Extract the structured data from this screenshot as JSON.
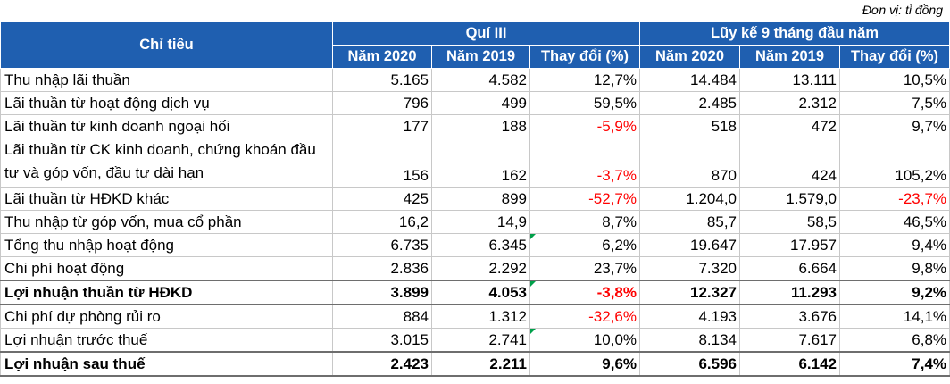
{
  "unit_note": "Đơn vị: tỉ đồng",
  "header": {
    "indicator": "Chỉ tiêu",
    "group_q3": "Quí III",
    "group_9m": "Lũy kế 9 tháng đầu năm",
    "col_2020": "Năm 2020",
    "col_2019": "Năm 2019",
    "col_change": "Thay đổi (%)"
  },
  "rows": [
    {
      "label": "Thu nhập lãi thuần",
      "q3_2020": "5.165",
      "q3_2019": "4.582",
      "q3_change": "12,7%",
      "m9_2020": "14.484",
      "m9_2019": "13.111",
      "m9_change": "10,5%"
    },
    {
      "label": "Lãi thuần từ hoạt động dịch vụ",
      "q3_2020": "796",
      "q3_2019": "499",
      "q3_change": "59,5%",
      "m9_2020": "2.485",
      "m9_2019": "2.312",
      "m9_change": "7,5%"
    },
    {
      "label": "Lãi thuần từ kinh doanh ngoại hối",
      "q3_2020": "177",
      "q3_2019": "188",
      "q3_change": "-5,9%",
      "m9_2020": "518",
      "m9_2019": "472",
      "m9_change": "9,7%"
    },
    {
      "label": "Lãi thuần từ CK kinh doanh, chứng khoán đầu tư và góp vốn, đầu tư dài hạn",
      "q3_2020": "156",
      "q3_2019": "162",
      "q3_change": "-3,7%",
      "m9_2020": "870",
      "m9_2019": "424",
      "m9_change": "105,2%"
    },
    {
      "label": "Lãi thuần từ HĐKD khác",
      "q3_2020": "425",
      "q3_2019": "899",
      "q3_change": "-52,7%",
      "m9_2020": "1.204,0",
      "m9_2019": "1.579,0",
      "m9_change": "-23,7%"
    },
    {
      "label": "Thu nhập từ góp vốn, mua cổ phần",
      "q3_2020": "16,2",
      "q3_2019": "14,9",
      "q3_change": "8,7%",
      "m9_2020": "85,7",
      "m9_2019": "58,5",
      "m9_change": "46,5%"
    },
    {
      "label": "Tổng thu nhập hoạt động",
      "q3_2020": "6.735",
      "q3_2019": "6.345",
      "q3_change": "6,2%",
      "m9_2020": "19.647",
      "m9_2019": "17.957",
      "m9_change": "9,4%"
    },
    {
      "label": "Chi phí hoạt động",
      "q3_2020": "2.836",
      "q3_2019": "2.292",
      "q3_change": "23,7%",
      "m9_2020": "7.320",
      "m9_2019": "6.664",
      "m9_change": "9,8%"
    },
    {
      "label": "Lợi nhuận thuần từ HĐKD",
      "q3_2020": "3.899",
      "q3_2019": "4.053",
      "q3_change": "-3,8%",
      "m9_2020": "12.327",
      "m9_2019": "11.293",
      "m9_change": "9,2%"
    },
    {
      "label": "Chi phí dự phòng rủi ro",
      "q3_2020": "884",
      "q3_2019": "1.312",
      "q3_change": "-32,6%",
      "m9_2020": "4.193",
      "m9_2019": "3.676",
      "m9_change": "14,1%"
    },
    {
      "label": "Lợi nhuận trước thuế",
      "q3_2020": "3.015",
      "q3_2019": "2.741",
      "q3_change": "10,0%",
      "m9_2020": "8.134",
      "m9_2019": "7.617",
      "m9_change": "6,8%"
    },
    {
      "label": "Lợi nhuận sau thuế",
      "q3_2020": "2.423",
      "q3_2019": "2.211",
      "q3_change": "9,6%",
      "m9_2020": "6.596",
      "m9_2019": "6.142",
      "m9_change": "7,4%"
    }
  ],
  "colors": {
    "header_bg": "#1f5fb0",
    "negative": "#ff0000",
    "indicator_marker": "#00a04a"
  }
}
